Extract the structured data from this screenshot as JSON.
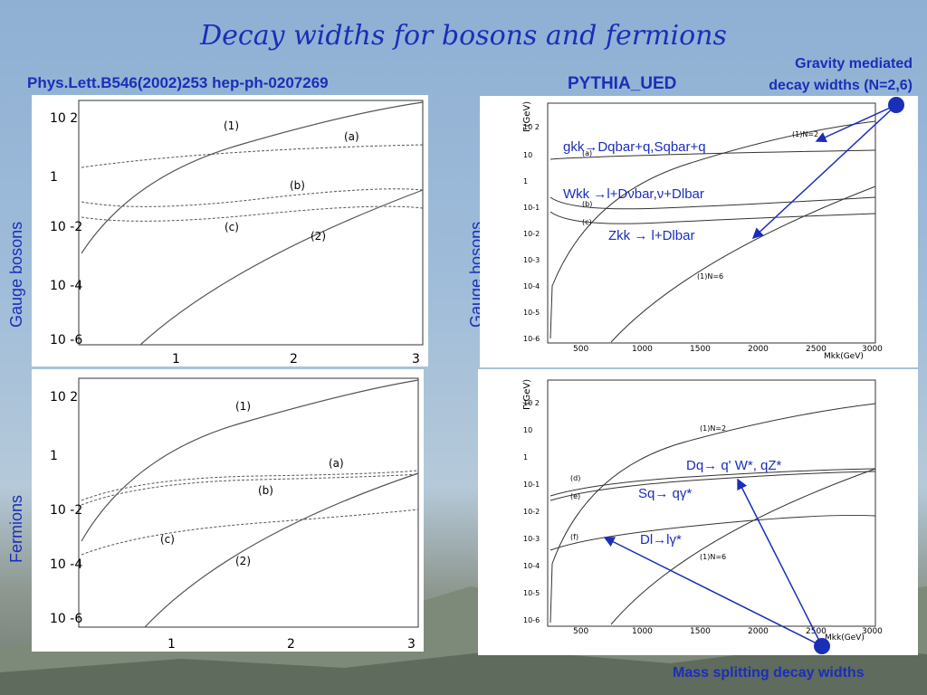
{
  "slide": {
    "title": "Decay widths for bosons and fermions",
    "ref": "Phys.Lett.B546(2002)253 hep-ph-0207269",
    "pythia": "PYTHIA_UED",
    "gravity_label_1": "Gravity mediated",
    "gravity_label_2": "decay widths (N=2,6)",
    "mass_label": "Mass splitting decay widths",
    "side_gauge": "Gauge bosons",
    "side_fermions": "Fermions"
  },
  "annotations": {
    "g_kk": "gkk→Dqbar+q,Sqbar+q",
    "w_kk": "Wkk →l+Dνbar,ν+Dlbar",
    "z_kk": "Zkk → l+Dlbar",
    "dq": "Dq→ q' W*, qZ*",
    "sq": "Sq→ qγ*",
    "dl": "Dl→lγ*"
  },
  "colors": {
    "accent": "#1a2fb8",
    "curve": "#555555"
  },
  "chart_data": [
    {
      "type": "line",
      "panel": "left-top",
      "x_ticks": [
        "1",
        "2",
        "3"
      ],
      "y_ticks": [
        "10 2",
        "1",
        "10 -2",
        "10 -4",
        "10 -6"
      ],
      "curve_labels": [
        "(1)",
        "(a)",
        "(b)",
        "(c)",
        "(2)"
      ]
    },
    {
      "type": "line",
      "panel": "left-bottom",
      "x_ticks": [
        "1",
        "2",
        "3"
      ],
      "y_ticks": [
        "10 2",
        "1",
        "10 -2",
        "10 -4",
        "10 -6"
      ],
      "curve_labels": [
        "(1)",
        "(a)",
        "(b)",
        "(c)",
        "(2)"
      ]
    },
    {
      "type": "line",
      "panel": "right-top",
      "ylabel": "Γ(GeV)",
      "xlabel": "Mkk(GeV)",
      "x_ticks": [
        "500",
        "1000",
        "1500",
        "2000",
        "2500",
        "3000"
      ],
      "y_ticks": [
        "10 2",
        "10",
        "1",
        "10-1",
        "10-2",
        "10-3",
        "10-4",
        "10-5",
        "10-6"
      ],
      "curve_labels": [
        "(1)N=2",
        "(a)",
        "(b)",
        "(c)",
        "(1)N=6"
      ]
    },
    {
      "type": "line",
      "panel": "right-bottom",
      "ylabel": "Γ(GeV)",
      "xlabel": "Mkk(GeV)",
      "x_ticks": [
        "500",
        "1000",
        "1500",
        "2000",
        "2500",
        "3000"
      ],
      "y_ticks": [
        "10 2",
        "10",
        "1",
        "10-1",
        "10-2",
        "10-3",
        "10-4",
        "10-5",
        "10-6"
      ],
      "curve_labels": [
        "(1)N=2",
        "(d)",
        "(e)",
        "(f)",
        "(1)N=6"
      ]
    }
  ]
}
